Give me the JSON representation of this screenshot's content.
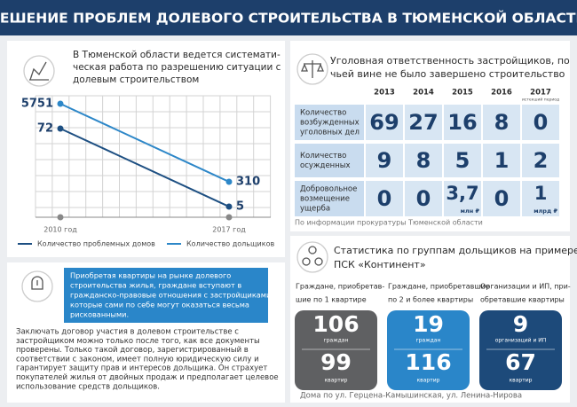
{
  "header": {
    "title": "РЕШЕНИЕ ПРОБЛЕМ ДОЛЕВОГО СТРОИТЕЛЬСТВА В ТЮМЕНСКОЙ ОБЛАСТИ"
  },
  "intro": {
    "lines": [
      "В Тюменской области ведется системати-",
      "ческая работа по разрешению ситуации с",
      "долевым строительством"
    ]
  },
  "chart_data": {
    "type": "line",
    "categories": [
      "2010 год",
      "2017 год"
    ],
    "series": [
      {
        "name": "Количество проблемных домов",
        "color": "#1d4f82",
        "values": [
          72,
          5
        ]
      },
      {
        "name": "Количество дольщиков",
        "color": "#2d87c8",
        "values": [
          5751,
          310
        ]
      }
    ]
  },
  "notice": {
    "lines": [
      "Приобретая квартиры на рынке долевого",
      "строительства жилья, граждане вступают в",
      "гражданско-правовые отношения с застройщиками,",
      "которые сами по себе могут оказаться весьма",
      "рискованными."
    ]
  },
  "advice": {
    "lines": [
      "Заключать договор участия в долевом строительстве с",
      "застройщиком можно только после того, как все документы",
      "проверены. Только такой договор, зарегистрированный в",
      "соответствии с законом, имеет полную юридическую силу и",
      "гарантирует защиту прав и интересов дольщика. Он страхует",
      "покупателей жилья от двойных продаж и предполагает целевое",
      "использование средств дольщиков."
    ]
  },
  "criminal": {
    "heading": [
      "Уголовная ответственность застройщиков, по",
      "чьей вине не было завершено строительство"
    ],
    "years": [
      2013,
      2014,
      2015,
      2016,
      2017
    ],
    "year_note": "истекший период",
    "rows": [
      {
        "label": [
          "Количество",
          "возбужденных",
          "уголовных дел"
        ],
        "cells": [
          69,
          27,
          16,
          8,
          0
        ]
      },
      {
        "label": [
          "Количество",
          "осужденных"
        ],
        "cells": [
          9,
          8,
          5,
          1,
          2
        ]
      },
      {
        "label": [
          "Добровольное",
          "возмещение",
          "ущерба"
        ],
        "cells": [
          0,
          0,
          {
            "value": "3,7",
            "unit": "млн ₽"
          },
          0,
          {
            "value": 1,
            "unit": "млрд ₽"
          }
        ]
      }
    ],
    "source": "По информации прокуратуры Тюменской области"
  },
  "groups": {
    "heading": [
      "Статистика по группам дольщиков на примере",
      "ПСК «Континент»"
    ],
    "cards": [
      {
        "caption": [
          "Граждане, приобретав-",
          "шие по 1 квартире"
        ],
        "top": 106,
        "top_unit": "граждан",
        "bottom": 99,
        "bottom_unit": "квартир"
      },
      {
        "caption": [
          "Граждане, приобретавшие",
          "по 2 и более квартиры"
        ],
        "top": 19,
        "top_unit": "граждан",
        "bottom": 116,
        "bottom_unit": "квартир"
      },
      {
        "caption": [
          "Организации и ИП, при-",
          "обретавшие квартиры"
        ],
        "top": 9,
        "top_unit": "организаций и ИП",
        "bottom": 67,
        "bottom_unit": "квартир"
      }
    ],
    "footer": "Дома по ул. Герцена-Камышинская, ул. Ленина-Нирова"
  }
}
